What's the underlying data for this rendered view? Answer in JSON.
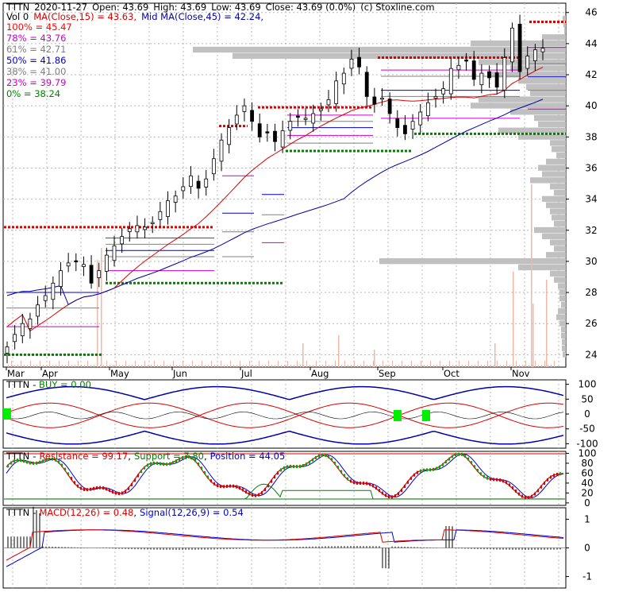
{
  "header": {
    "ticker": "TTTN",
    "date": "2020-11-27",
    "open": "Open: 43.69",
    "high": "High: 43.69",
    "low": "Low: 43.69",
    "close": "Close: 43.69 (0.0%)",
    "source": "(c) Stoxline.com"
  },
  "ma_line": {
    "vol": "Vol 0",
    "ma15": "MA(Close,15) = 43.63,",
    "ma45": "Mid MA(Close,45) = 42.24,"
  },
  "fib_levels": [
    {
      "label": "100% = 45.47",
      "color": "#ff0000"
    },
    {
      "label": "78% = 43.76",
      "color": "#cc00cc"
    },
    {
      "label": "61% = 42.71",
      "color": "#808080"
    },
    {
      "label": "50% = 41.86",
      "color": "#0000cc"
    },
    {
      "label": "38% = 41.00",
      "color": "#808080"
    },
    {
      "label": "23% = 39.79",
      "color": "#cc00cc"
    },
    {
      "label": "0% = 38.24",
      "color": "#008000"
    }
  ],
  "panels": {
    "buy": {
      "ticker": "TTTN",
      "label": "BUY = 0.00",
      "label_color": "#008000"
    },
    "stoch": {
      "ticker": "TTTN",
      "resistance": "Resistance = 99.17",
      "support": "Support = 7.80",
      "position": "Position = 44.05"
    },
    "macd": {
      "ticker": "TTTN",
      "macd": "MACD(12,26) = 0.48",
      "signal": "Signal(12,26,9) = 0.54"
    }
  },
  "colors": {
    "up_candle": "#ffffff",
    "down_candle": "#000000",
    "ma15": "#dd0000",
    "ma45": "#0000aa",
    "resistance": "#dd0000",
    "support": "#008000",
    "volume_profile": "#c0c0c0",
    "volume_bars": "#f0b8a8"
  },
  "chart_data": [
    {
      "type": "candlestick",
      "title": "",
      "x_ticks": [
        "Mar",
        "Apr",
        "May",
        "Jun",
        "Jul",
        "Aug",
        "Sep",
        "Oct",
        "Nov"
      ],
      "y_ticks": [
        "24",
        "26",
        "28",
        "30",
        "32",
        "34",
        "36",
        "38",
        "40",
        "42",
        "44",
        "46"
      ],
      "ylim": [
        23.2,
        46.6
      ],
      "close_series": [
        24.5,
        25.3,
        26.0,
        26.3,
        27.2,
        27.8,
        28.6,
        29.4,
        29.9,
        30.0,
        29.8,
        28.6,
        29.4,
        30.4,
        31.0,
        31.6,
        32.1,
        32.3,
        32.2,
        32.5,
        33.2,
        33.9,
        34.2,
        34.8,
        35.5,
        34.7,
        35.3,
        36.6,
        37.8,
        38.6,
        39.4,
        40.0,
        39.0,
        38.0,
        38.3,
        37.7,
        38.4,
        39.0,
        39.3,
        39.2,
        39.5,
        39.8,
        40.4,
        41.6,
        42.1,
        43.0,
        42.5,
        40.6,
        40.1,
        40.5,
        39.5,
        38.6,
        38.2,
        39.0,
        39.6,
        40.2,
        40.6,
        41.1,
        42.4,
        42.6,
        42.9,
        41.7,
        42.1,
        41.8,
        41.2,
        43.1,
        45.0,
        42.2,
        43.2,
        43.6,
        43.7
      ],
      "volume_spikes_note": "",
      "resistance_levels": [
        32.2,
        39.8,
        43.1,
        45.4
      ],
      "support_levels": [
        24.0,
        28.6,
        37.1,
        38.2
      ],
      "ma15_last": 43.63,
      "ma45_last": 42.24
    },
    {
      "type": "line",
      "title": "BUY",
      "y_ticks": [
        "100",
        "50",
        "0",
        "-50",
        "-100"
      ],
      "ylim": [
        -115,
        115
      ]
    },
    {
      "type": "line",
      "title": "Resistance / Support / Position",
      "y_ticks": [
        "100",
        "80",
        "60",
        "40",
        "20",
        "0"
      ],
      "ylim": [
        -5,
        104
      ],
      "resistance": 99.17,
      "support": 7.8,
      "position": 44.05
    },
    {
      "type": "line",
      "title": "MACD",
      "y_ticks": [
        "1",
        "0",
        "-1"
      ],
      "ylim": [
        -1.4,
        1.4
      ],
      "macd": 0.48,
      "signal": 0.54
    }
  ]
}
